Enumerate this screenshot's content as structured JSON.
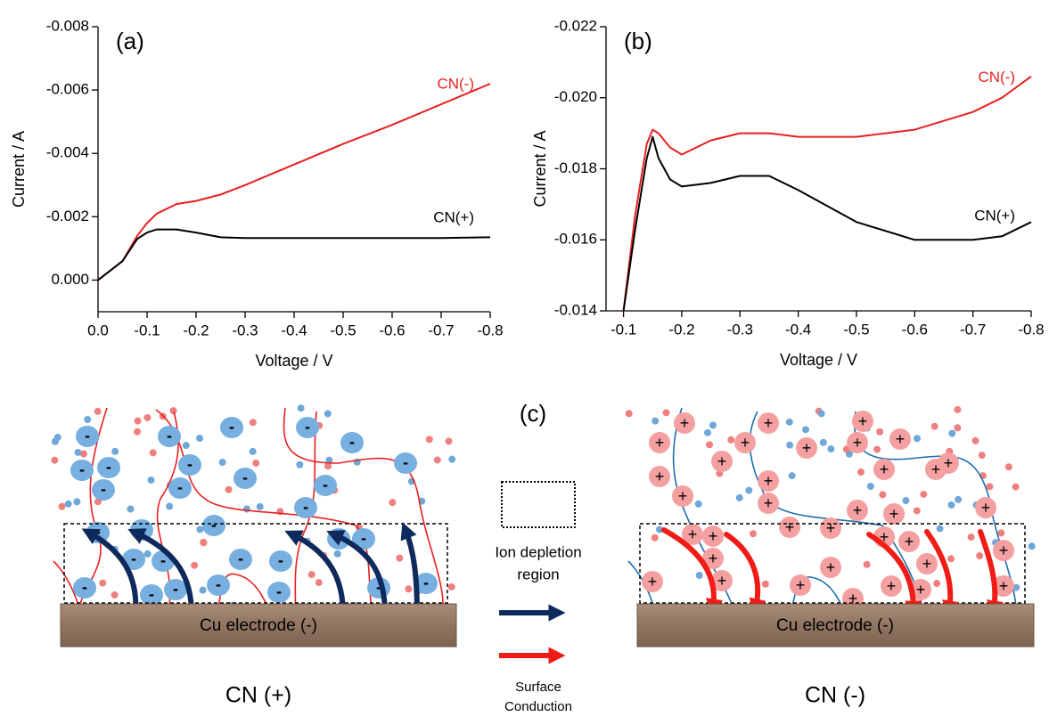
{
  "chart_data": [
    {
      "type": "line",
      "panel_label": "(a)",
      "x_label": "Voltage / V",
      "y_label": "Current / A",
      "x": [
        0,
        -0.05,
        -0.08,
        -0.1,
        -0.12,
        -0.16,
        -0.2,
        -0.25,
        -0.3,
        -0.4,
        -0.5,
        -0.6,
        -0.7,
        -0.8
      ],
      "series": [
        {
          "name": "CN(-)",
          "color": "#e8201f",
          "values": [
            0,
            -0.0006,
            -0.0014,
            -0.0018,
            -0.0021,
            -0.0024,
            -0.0025,
            -0.0027,
            -0.003,
            -0.00365,
            -0.0043,
            -0.0049,
            -0.00555,
            -0.0062
          ]
        },
        {
          "name": "CN(+)",
          "color": "#000000",
          "values": [
            0,
            -0.0006,
            -0.0013,
            -0.0015,
            -0.0016,
            -0.0016,
            -0.0015,
            -0.00135,
            -0.00133,
            -0.00133,
            -0.00133,
            -0.00133,
            -0.00133,
            -0.00135
          ]
        }
      ],
      "xlim": [
        0,
        -0.8
      ],
      "xticks": [
        {
          "value": 0,
          "label": "0.0"
        },
        -0.1,
        -0.2,
        -0.3,
        -0.4,
        -0.5,
        -0.6,
        -0.7,
        -0.8
      ],
      "ylim": [
        0.001,
        -0.008
      ],
      "yticks": [
        {
          "value": 0,
          "label": "0.000"
        },
        -0.002,
        -0.004,
        -0.006,
        -0.008
      ]
    },
    {
      "type": "line",
      "panel_label": "(b)",
      "x_label": "Voltage / V",
      "y_label": "Current / A",
      "x": [
        -0.1,
        -0.12,
        -0.14,
        -0.15,
        -0.16,
        -0.18,
        -0.2,
        -0.25,
        -0.3,
        -0.35,
        -0.4,
        -0.5,
        -0.6,
        -0.7,
        -0.75,
        -0.8
      ],
      "series": [
        {
          "name": "CN(-)",
          "color": "#e8201f",
          "values": [
            -0.014,
            -0.0167,
            -0.0187,
            -0.0191,
            -0.019,
            -0.0186,
            -0.0184,
            -0.0188,
            -0.019,
            -0.019,
            -0.0189,
            -0.0189,
            -0.0191,
            -0.0196,
            -0.02,
            -0.0206
          ]
        },
        {
          "name": "CN(+)",
          "color": "#000000",
          "values": [
            -0.014,
            -0.0163,
            -0.0183,
            -0.0189,
            -0.0183,
            -0.0177,
            -0.0175,
            -0.0176,
            -0.0178,
            -0.0178,
            -0.0174,
            -0.0165,
            -0.016,
            -0.016,
            -0.0161,
            -0.0165
          ]
        }
      ],
      "xlim": [
        -0.07,
        -0.8
      ],
      "xticks": [
        -0.1,
        -0.2,
        -0.3,
        -0.4,
        -0.5,
        -0.6,
        -0.7,
        -0.8
      ],
      "ylim": [
        -0.014,
        -0.022
      ],
      "yticks": [
        -0.014,
        -0.016,
        -0.018,
        {
          "value": -0.02,
          "label": "-0.020"
        },
        -0.022
      ]
    }
  ],
  "diagram": {
    "panel_label": "(c)",
    "electrode": "Cu electrode (-)",
    "left_caption": "CN (+)",
    "right_caption": "CN (-)",
    "anion_sign": "-",
    "cation_sign": "+",
    "depletion_legend": [
      "Ion depletion",
      "region"
    ],
    "conduction_legend": [
      "Surface",
      "Conduction"
    ]
  }
}
